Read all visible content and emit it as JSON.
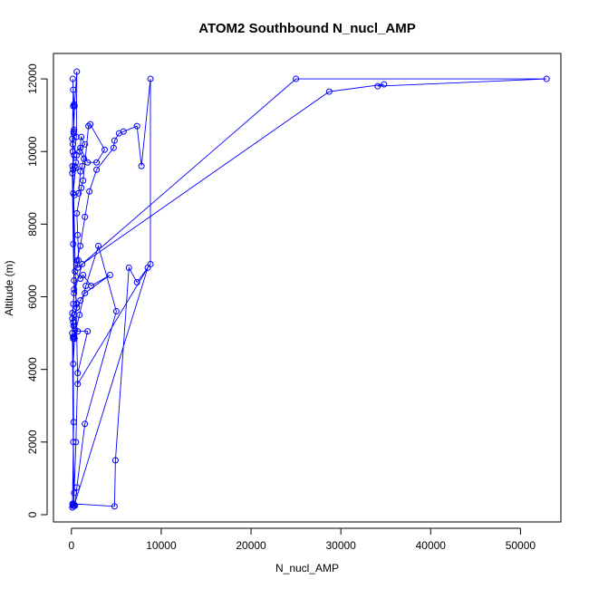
{
  "chart_data": {
    "type": "line",
    "title": "ATOM2 Southbound N_nucl_AMP",
    "xlabel": "N_nucl_AMP",
    "ylabel": "Altitude (m)",
    "xlim": [
      -2000,
      54500
    ],
    "ylim": [
      -200,
      12700
    ],
    "x_ticks": [
      0,
      10000,
      20000,
      30000,
      40000,
      50000
    ],
    "x_tick_labels": [
      "0",
      "10000",
      "20000",
      "30000",
      "40000",
      "50000"
    ],
    "y_ticks": [
      0,
      2000,
      4000,
      6000,
      8000,
      10000,
      12000
    ],
    "y_tick_labels": [
      "0",
      "2000",
      "4000",
      "6000",
      "8000",
      "10000",
      "12000"
    ],
    "grid": false,
    "legend": "none",
    "series": [
      {
        "color": "#0000ff",
        "marker": "open-circle",
        "points": [
          [
            150,
            250
          ],
          [
            120,
            300
          ],
          [
            250,
            2550
          ],
          [
            200,
            4150
          ],
          [
            400,
            5100
          ],
          [
            600,
            5800
          ],
          [
            300,
            6450
          ],
          [
            200,
            9500
          ],
          [
            100,
            10350
          ],
          [
            200,
            11700
          ],
          [
            150,
            12000
          ],
          [
            300,
            11300
          ],
          [
            200,
            11250
          ],
          [
            300,
            10600
          ],
          [
            250,
            10500
          ],
          [
            150,
            10200
          ],
          [
            600,
            9900
          ],
          [
            500,
            9700
          ],
          [
            350,
            9600
          ],
          [
            450,
            9550
          ],
          [
            200,
            8850
          ],
          [
            350,
            8800
          ],
          [
            800,
            8850
          ],
          [
            1000,
            9450
          ],
          [
            1200,
            9600
          ],
          [
            1400,
            9800
          ],
          [
            900,
            10000
          ],
          [
            1100,
            10400
          ],
          [
            1500,
            10200
          ],
          [
            1000,
            10100
          ],
          [
            1800,
            9700
          ],
          [
            2800,
            9700
          ],
          [
            3700,
            10050
          ],
          [
            2100,
            10750
          ],
          [
            1900,
            10700
          ],
          [
            1300,
            9200
          ],
          [
            1100,
            9000
          ],
          [
            600,
            8300
          ],
          [
            700,
            7700
          ],
          [
            800,
            7000
          ],
          [
            400,
            6700
          ],
          [
            1000,
            6500
          ],
          [
            1300,
            6600
          ],
          [
            2200,
            6300
          ],
          [
            4300,
            6600
          ],
          [
            1500,
            6100
          ],
          [
            1000,
            5900
          ],
          [
            600,
            5700
          ],
          [
            300,
            5500
          ],
          [
            200,
            5300
          ],
          [
            100,
            5000
          ],
          [
            200,
            4900
          ],
          [
            700,
            5050
          ],
          [
            1800,
            5050
          ],
          [
            700,
            3900
          ],
          [
            500,
            2000
          ],
          [
            300,
            600
          ],
          [
            200,
            250
          ],
          [
            100,
            200
          ],
          [
            400,
            250
          ],
          [
            600,
            750
          ],
          [
            1500,
            2500
          ],
          [
            5000,
            5600
          ],
          [
            3000,
            7400
          ],
          [
            1600,
            6300
          ],
          [
            900,
            5500
          ],
          [
            300,
            4900
          ],
          [
            200,
            4850
          ],
          [
            250,
            300
          ],
          [
            4800,
            230
          ],
          [
            4900,
            1500
          ],
          [
            6400,
            6800
          ],
          [
            7300,
            6400
          ],
          [
            8800,
            6900
          ],
          [
            8800,
            12000
          ],
          [
            7800,
            9600
          ],
          [
            7300,
            10700
          ],
          [
            5800,
            10550
          ],
          [
            5300,
            10500
          ],
          [
            4800,
            10300
          ],
          [
            4700,
            10100
          ],
          [
            2800,
            9500
          ],
          [
            2000,
            8900
          ],
          [
            1500,
            8200
          ],
          [
            1000,
            7400
          ],
          [
            600,
            7000
          ],
          [
            700,
            6800
          ],
          [
            25000,
            12000
          ],
          [
            52900,
            12000
          ],
          [
            34100,
            11800
          ],
          [
            34800,
            11850
          ],
          [
            28700,
            11650
          ],
          [
            1200,
            6900
          ],
          [
            300,
            6100
          ],
          [
            100,
            5400
          ],
          [
            200,
            2000
          ],
          [
            300,
            250
          ],
          [
            8500,
            6800
          ],
          [
            700,
            3600
          ],
          [
            150,
            10000
          ],
          [
            250,
            10550
          ],
          [
            350,
            11250
          ],
          [
            600,
            12200
          ],
          [
            550,
            10400
          ],
          [
            300,
            9900
          ],
          [
            120,
            9600
          ],
          [
            100,
            9400
          ],
          [
            200,
            7450
          ],
          [
            300,
            6200
          ],
          [
            200,
            5800
          ],
          [
            100,
            5550
          ],
          [
            250,
            5200
          ],
          [
            350,
            4850
          ]
        ]
      }
    ]
  }
}
